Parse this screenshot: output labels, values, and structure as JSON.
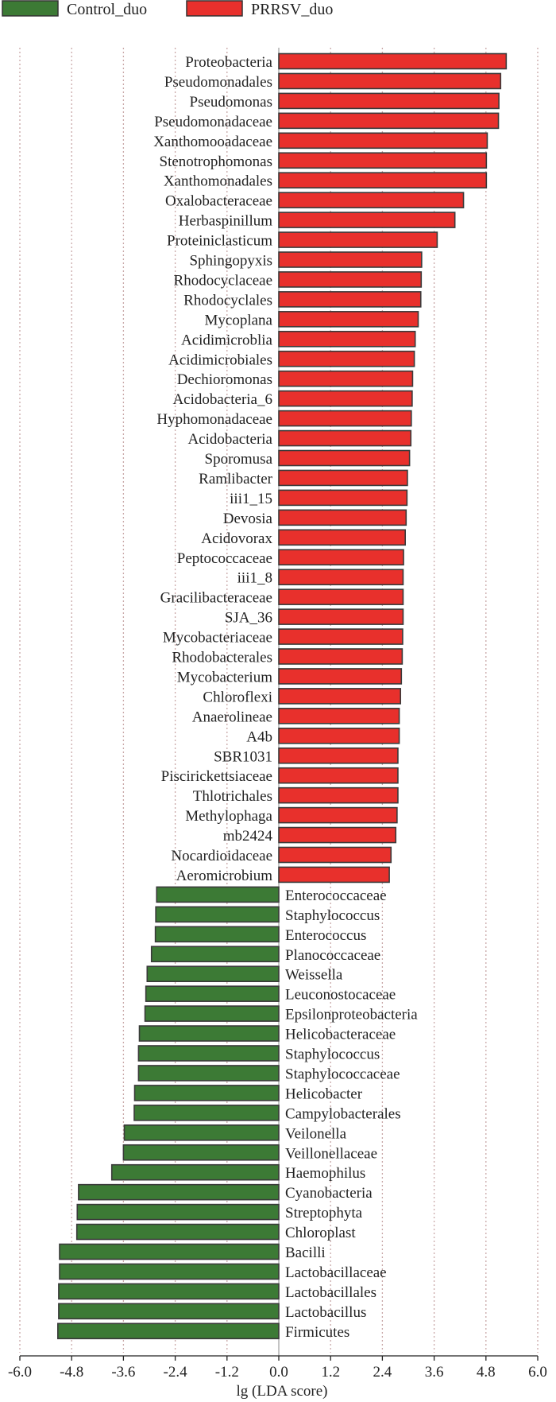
{
  "chart_data": {
    "type": "bar",
    "orientation": "horizontal",
    "title": "",
    "xlabel": "lg (LDA score)",
    "ylabel": "",
    "xlim": [
      -6.0,
      6.0
    ],
    "x_ticks": [
      "-6.0",
      "-4.8",
      "-3.6",
      "-2.4",
      "-1.2",
      "0.0",
      "1.2",
      "2.4",
      "3.6",
      "4.8",
      "6.0"
    ],
    "legend": {
      "placement": "top-left",
      "entries": [
        {
          "name": "Control_duo",
          "color": "#3c7a35"
        },
        {
          "name": "PRRSV_duo",
          "color": "#e8302c"
        }
      ]
    },
    "series": [
      {
        "name": "PRRSV_duo",
        "color": "#e8302c",
        "categories": [
          "Proteobacteria",
          "Pseudomonadales",
          "Pseudomonas",
          "Pseudomonadaceae",
          "Xanthomooadaceae",
          "Stenotrophomonas",
          "Xanthomonadales",
          "Oxalobacteraceae",
          "Herbaspinillum",
          "Proteiniclasticum",
          "Sphingopyxis",
          "Rhodocyclaceae",
          "Rhodocyclales",
          "Mycoplana",
          "Acidimicroblia",
          "Acidimicrobiales",
          "Dechioromonas",
          "Acidobacteria_6",
          "Hyphomonadaceae",
          "Acidobacteria",
          "Sporomusa",
          "Ramlibacter",
          "iii1_15",
          "Devosia",
          "Acidovorax",
          "Peptococcaceae",
          "iii1_8",
          "Gracilibacteraceae",
          "SJA_36",
          "Mycobacteriaceae",
          "Rhodobacterales",
          "Mycobacterium",
          "Chloroflexi",
          "Anaerolineae",
          "A4b",
          "SBR1031",
          "Piscirickettsiaceae",
          "Thlotrichales",
          "Methylophaga",
          "mb2424",
          "Nocardioidaceae",
          "Aeromicrobium"
        ],
        "values": [
          5.27,
          5.14,
          5.1,
          5.09,
          4.83,
          4.81,
          4.81,
          4.28,
          4.08,
          3.67,
          3.31,
          3.3,
          3.29,
          3.23,
          3.16,
          3.14,
          3.1,
          3.09,
          3.07,
          3.06,
          3.03,
          2.98,
          2.97,
          2.95,
          2.93,
          2.89,
          2.88,
          2.88,
          2.88,
          2.87,
          2.86,
          2.84,
          2.82,
          2.79,
          2.79,
          2.76,
          2.76,
          2.76,
          2.74,
          2.71,
          2.6,
          2.56
        ]
      },
      {
        "name": "Control_duo",
        "color": "#3c7a35",
        "categories": [
          "Enterococcaceae",
          "Staphylococcus",
          "Enterococcus",
          "Planococcaceae",
          "Weissella",
          "Leuconostocaceae",
          "Epsilonproteobacteria",
          "Helicobacteraceae",
          "Staphylococcus",
          "Staphylococcaceae",
          "Helicobacter",
          "Campylobacterales",
          "Veilonella",
          "Veillonellaceae",
          "Haemophilus",
          "Cyanobacteria",
          "Streptophyta",
          "Chloroplast",
          "Bacilli",
          "Lactobacillaceae",
          "Lactobacillales",
          "Lactobacillus",
          "Firmicutes"
        ],
        "values": [
          -2.83,
          -2.85,
          -2.86,
          -2.95,
          -3.05,
          -3.08,
          -3.1,
          -3.23,
          -3.25,
          -3.25,
          -3.34,
          -3.35,
          -3.58,
          -3.6,
          -3.87,
          -4.64,
          -4.67,
          -4.68,
          -5.08,
          -5.08,
          -5.1,
          -5.1,
          -5.12
        ]
      }
    ]
  }
}
